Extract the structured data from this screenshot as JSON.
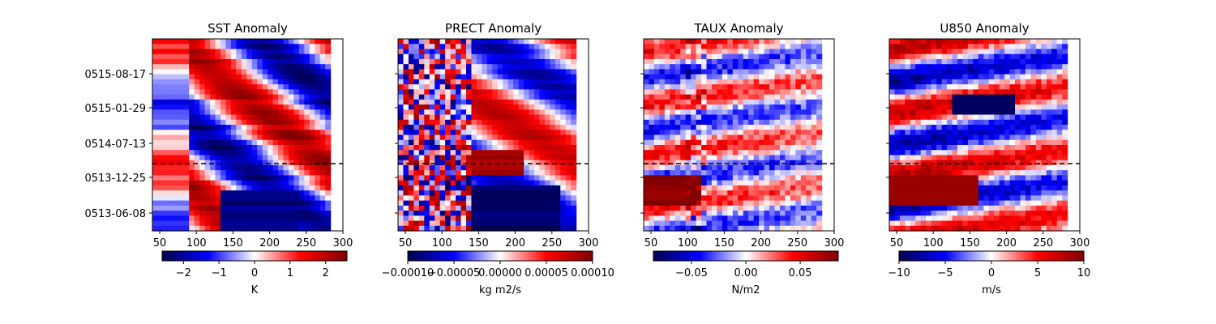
{
  "chart_data": [
    {
      "type": "heatmap",
      "title": "SST Anomaly",
      "xlim": [
        40,
        283
      ],
      "xticks": [
        50,
        100,
        150,
        200,
        250,
        300
      ],
      "yticks": [
        "0515-08-17",
        "0515-01-29",
        "0514-07-13",
        "0513-12-25",
        "0513-06-08"
      ],
      "show_ytick_labels": true,
      "reference_line": "dashed horizontal line between 0514-07-13 and 0513-12-25",
      "colormap": "seismic",
      "colorbar": {
        "range": [
          -2.6,
          2.6
        ],
        "ticks": [
          "−2",
          "−1",
          "0",
          "1",
          "2"
        ],
        "tick_values": [
          -2,
          -1,
          0,
          1,
          2
        ],
        "label": "K"
      },
      "grid": false
    },
    {
      "type": "heatmap",
      "title": "PRECT Anomaly",
      "xlim": [
        40,
        283
      ],
      "xticks": [
        50,
        100,
        150,
        200,
        250,
        300
      ],
      "yticks": [
        "0515-08-17",
        "0515-01-29",
        "0514-07-13",
        "0513-12-25",
        "0513-06-08"
      ],
      "show_ytick_labels": false,
      "reference_line": "dashed horizontal line between 0514-07-13 and 0513-12-25",
      "colormap": "seismic",
      "colorbar": {
        "range": [
          -0.0001,
          0.0001
        ],
        "ticks": [
          "−0.00010",
          "−0.00005",
          "0.00000",
          "0.00005",
          "0.00010"
        ],
        "tick_values": [
          -0.0001,
          -5e-05,
          0,
          5e-05,
          0.0001
        ],
        "label": "kg m2/s"
      },
      "grid": false
    },
    {
      "type": "heatmap",
      "title": "TAUX Anomaly",
      "xlim": [
        40,
        283
      ],
      "xticks": [
        50,
        100,
        150,
        200,
        250,
        300
      ],
      "yticks": [
        "0515-08-17",
        "0515-01-29",
        "0514-07-13",
        "0513-12-25",
        "0513-06-08"
      ],
      "show_ytick_labels": false,
      "reference_line": "dashed horizontal line between 0514-07-13 and 0513-12-25",
      "colormap": "seismic",
      "colorbar": {
        "range": [
          -0.085,
          0.085
        ],
        "ticks": [
          "−0.05",
          "0.00",
          "0.05"
        ],
        "tick_values": [
          -0.05,
          0,
          0.05
        ],
        "label": "N/m2"
      },
      "grid": false
    },
    {
      "type": "heatmap",
      "title": "U850 Anomaly",
      "xlim": [
        40,
        283
      ],
      "xticks": [
        50,
        100,
        150,
        200,
        250,
        300
      ],
      "yticks": [
        "0515-08-17",
        "0515-01-29",
        "0514-07-13",
        "0513-12-25",
        "0513-06-08"
      ],
      "show_ytick_labels": false,
      "reference_line": "dashed horizontal line between 0514-07-13 and 0513-12-25",
      "colormap": "seismic",
      "colorbar": {
        "range": [
          -10,
          10
        ],
        "ticks": [
          "−10",
          "−5",
          "0",
          "5",
          "10"
        ],
        "tick_values": [
          -10,
          -5,
          0,
          5,
          10
        ],
        "label": "m/s"
      },
      "grid": false
    }
  ]
}
